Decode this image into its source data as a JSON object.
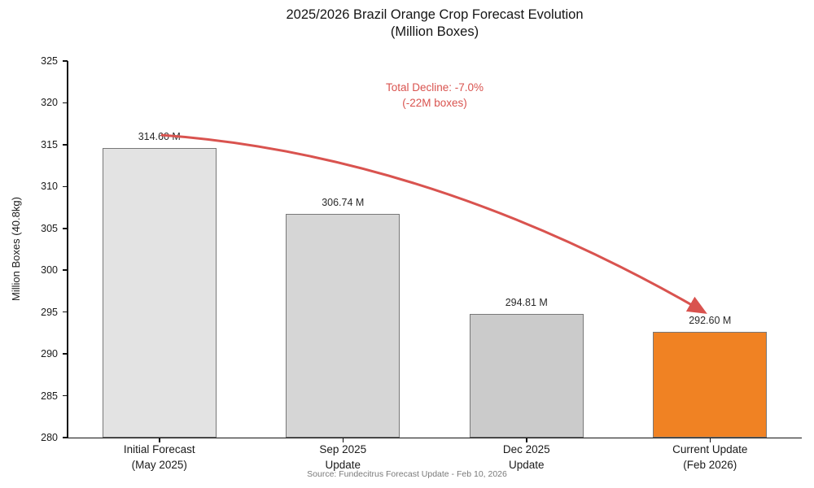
{
  "chart_data": {
    "type": "bar",
    "title_line1": "2025/2026 Brazil Orange Crop Forecast Evolution",
    "title_line2": "(Million Boxes)",
    "ylabel": "Million Boxes (40.8kg)",
    "ylim": [
      280,
      325
    ],
    "yticks": [
      280,
      285,
      290,
      295,
      300,
      305,
      310,
      315,
      320,
      325
    ],
    "categories": [
      [
        "Initial Forecast",
        "(May 2025)"
      ],
      [
        "Sep 2025",
        "Update"
      ],
      [
        "Dec 2025",
        "Update"
      ],
      [
        "Current Update",
        "(Feb 2026)"
      ]
    ],
    "values": [
      314.6,
      306.74,
      294.81,
      292.6
    ],
    "bar_labels": [
      "314.60 M",
      "306.74 M",
      "294.81 M",
      "292.60 M"
    ],
    "bar_colors": [
      "#e3e3e3",
      "#d6d6d6",
      "#cbcbcb",
      "#f08223"
    ],
    "bar_edge_color": "#787878",
    "annotation": {
      "line1": "Total Decline: -7.0%",
      "line2": "(-22M boxes)",
      "color": "#d9534f"
    },
    "arrow": {
      "from_bar": 0,
      "to_bar": 3,
      "color": "#d9534f"
    },
    "source": "Source: Fundecitrus Forecast Update - Feb 10, 2026",
    "grid": false,
    "legend": null
  }
}
